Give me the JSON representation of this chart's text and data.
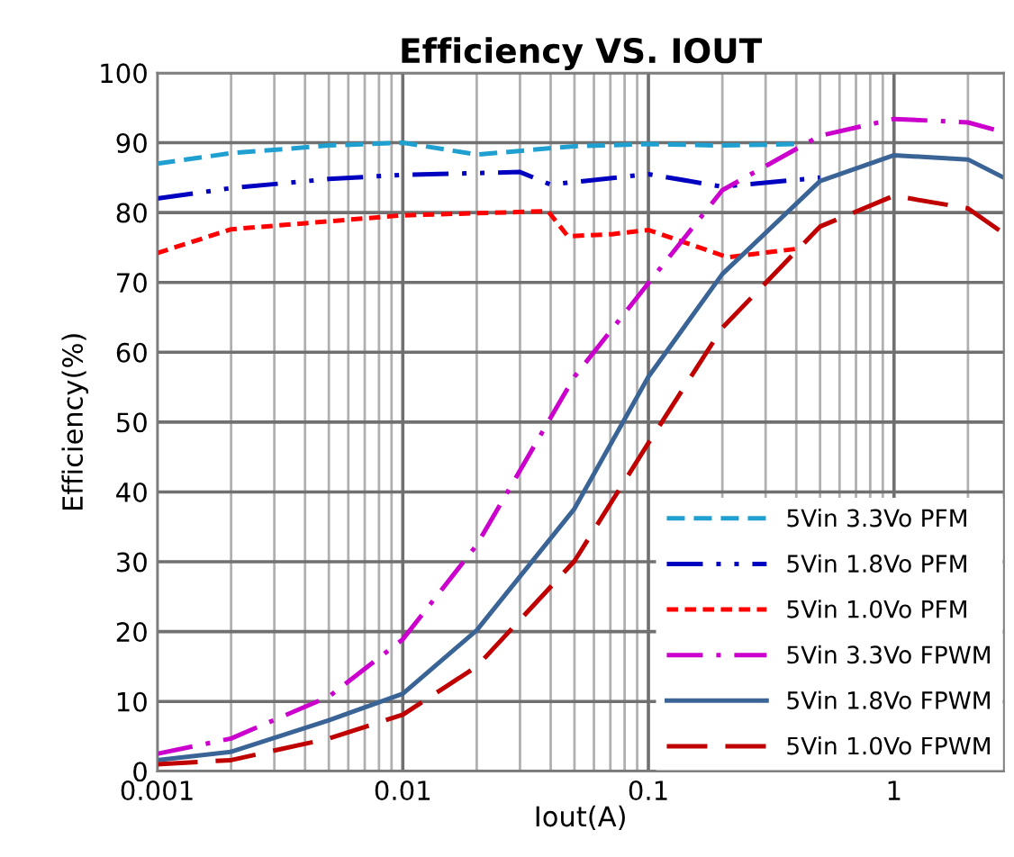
{
  "chart_data": {
    "type": "line",
    "title": "Efficiency VS. IOUT",
    "xlabel": "Iout(A)",
    "ylabel": "Efficiency(%)",
    "log": "x",
    "xlim": [
      0.001,
      2.8
    ],
    "xticks": [
      0.001,
      0.01,
      0.1,
      1
    ],
    "ylim": [
      0,
      100
    ],
    "yticks": [
      0,
      10,
      20,
      30,
      40,
      50,
      60,
      70,
      80,
      90,
      100
    ],
    "grid": true,
    "legend": "bottom right",
    "marker": "none",
    "series": [
      {
        "name": "5Vin 3.3Vo PFM",
        "color": "#1fa0d0",
        "line_style": "dashed",
        "x": [
          0.001,
          0.002,
          0.005,
          0.01,
          0.02,
          0.05,
          0.1,
          0.2,
          0.4
        ],
        "values": [
          87,
          88.5,
          89.6,
          90,
          88.3,
          89.5,
          89.8,
          89.6,
          89.8
        ]
      },
      {
        "name": "5Vin 1.8Vo PFM",
        "color": "#0000c0",
        "line_style": "dashdotdot",
        "x": [
          0.001,
          0.002,
          0.005,
          0.01,
          0.03,
          0.04,
          0.1,
          0.2,
          0.5
        ],
        "values": [
          82,
          83.5,
          84.8,
          85.4,
          85.8,
          84,
          85.5,
          83.7,
          85
        ]
      },
      {
        "name": "5Vin 1.0Vo PFM",
        "color": "#ff0000",
        "line_style": "dotted",
        "x": [
          0.001,
          0.002,
          0.01,
          0.039,
          0.047,
          0.071,
          0.1,
          0.21,
          0.4
        ],
        "values": [
          74.2,
          77.6,
          79.6,
          80.2,
          76.6,
          76.9,
          77.5,
          73.6,
          74.8
        ]
      },
      {
        "name": "5Vin 3.3Vo FPWM",
        "color": "#cc00cc",
        "line_style": "dashdot",
        "x": [
          0.001,
          0.002,
          0.005,
          0.01,
          0.02,
          0.05,
          0.1,
          0.2,
          0.5,
          1,
          2,
          2.8
        ],
        "values": [
          2.5,
          4.7,
          10.7,
          18.9,
          32.4,
          56.5,
          69.9,
          83.2,
          91,
          93.4,
          92.9,
          91.5
        ]
      },
      {
        "name": "5Vin 1.8Vo FPWM",
        "color": "#3a6496",
        "line_style": "solid",
        "x": [
          0.001,
          0.002,
          0.005,
          0.01,
          0.02,
          0.05,
          0.1,
          0.2,
          0.5,
          1,
          2,
          2.8
        ],
        "values": [
          1.6,
          2.8,
          7.3,
          11.1,
          20.2,
          37.6,
          56.5,
          71.2,
          84.5,
          88.2,
          87.6,
          85
        ]
      },
      {
        "name": "5Vin 1.0Vo FPWM",
        "color": "#c00000",
        "line_style": "longdash",
        "x": [
          0.001,
          0.002,
          0.005,
          0.01,
          0.02,
          0.05,
          0.1,
          0.2,
          0.5,
          1,
          2,
          2.8
        ],
        "values": [
          1.0,
          1.6,
          4.7,
          8.1,
          15,
          30.1,
          47,
          63.5,
          78,
          82.4,
          80.6,
          77
        ]
      }
    ]
  }
}
